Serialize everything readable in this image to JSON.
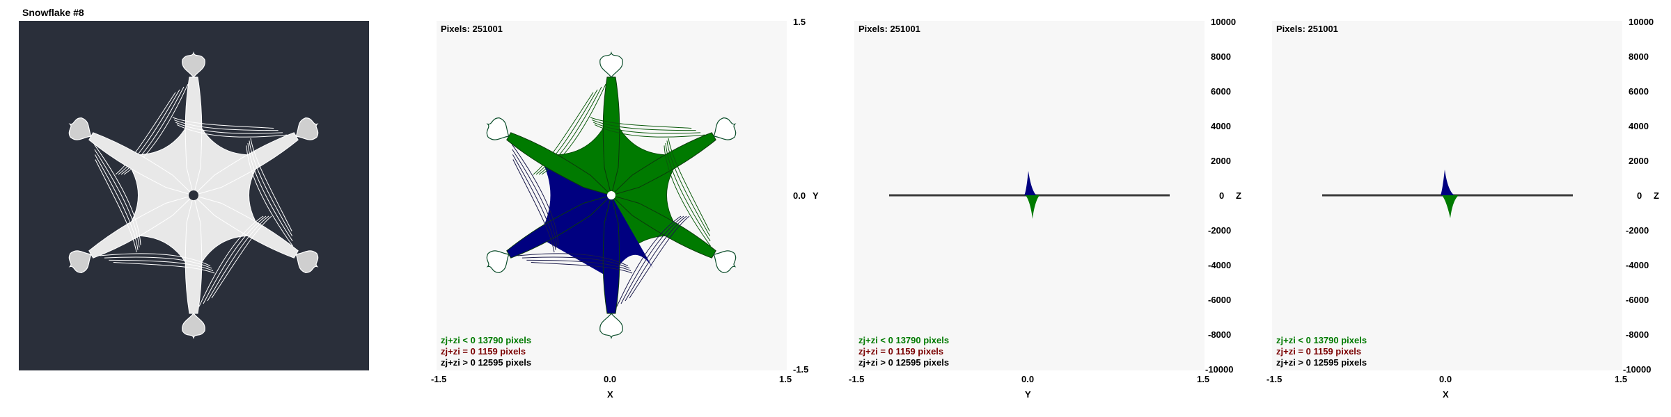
{
  "window": {
    "title": "Snowflake #8"
  },
  "panels": [
    {
      "pixels": "Pixels: 251001",
      "legend": [
        "zj+zi < 0  13790 pixels",
        "zj+zi = 0  1159 pixels",
        "zj+zi > 0  12595 pixels"
      ],
      "x_ticks": [
        "-1.5",
        "0.0",
        "1.5"
      ],
      "x_label": "X",
      "y_ticks": [
        "1.5",
        "0.0",
        "-1.5"
      ],
      "y_label": "Y"
    },
    {
      "pixels": "Pixels: 251001",
      "legend": [
        "zj+zi < 0  13790 pixels",
        "zj+zi = 0  1159 pixels",
        "zj+zi > 0  12595 pixels"
      ],
      "x_ticks": [
        "-1.5",
        "0.0",
        "1.5"
      ],
      "x_label": "Y",
      "y_ticks": [
        "10000",
        "8000",
        "6000",
        "4000",
        "2000",
        "0",
        "-2000",
        "-4000",
        "-6000",
        "-8000",
        "-10000"
      ],
      "y_label": "Z"
    },
    {
      "pixels": "Pixels: 251001",
      "legend": [
        "zj+zi < 0  13790 pixels",
        "zj+zi = 0  1159 pixels",
        "zj+zi > 0  12595 pixels"
      ],
      "x_ticks": [
        "-1.5",
        "0.0",
        "1.5"
      ],
      "x_label": "X",
      "y_ticks": [
        "10000",
        "8000",
        "6000",
        "4000",
        "2000",
        "0",
        "-2000",
        "-4000",
        "-6000",
        "-8000",
        "-10000"
      ],
      "y_label": "Z"
    }
  ],
  "colors": {
    "negative": "#007a00",
    "zero": "#7a0000",
    "positive": "#000080",
    "dark_bg": "#2a2f3a"
  }
}
